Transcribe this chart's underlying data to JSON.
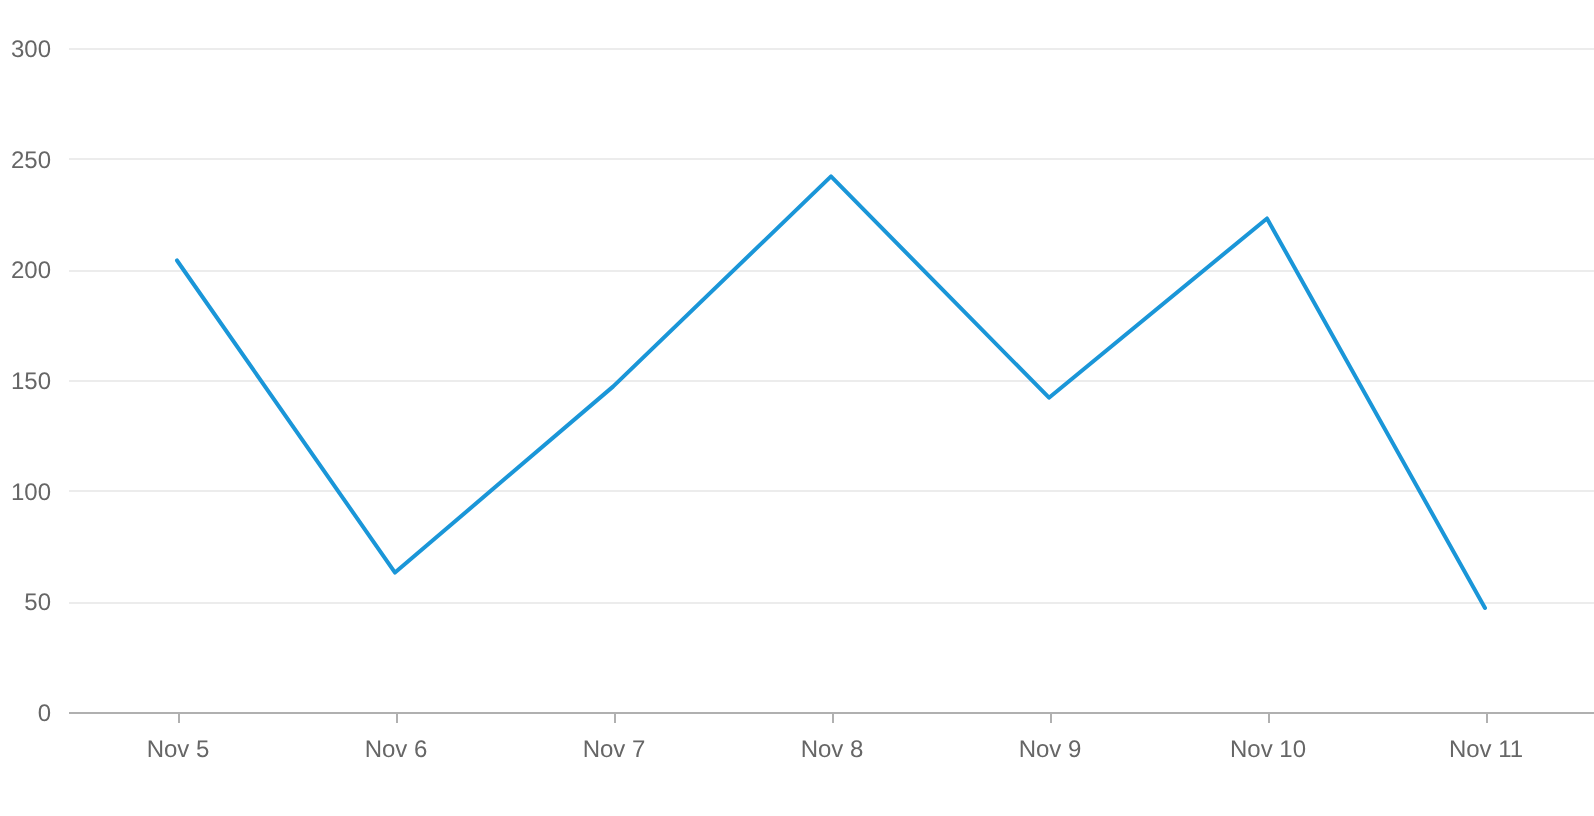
{
  "chart_data": {
    "type": "line",
    "categories": [
      "Nov 5",
      "Nov 6",
      "Nov 7",
      "Nov 8",
      "Nov 9",
      "Nov 10",
      "Nov 11"
    ],
    "series": [
      {
        "color": "#1a96d8",
        "values": [
          204,
          63,
          147,
          242,
          142,
          223,
          47
        ]
      }
    ],
    "ylim": [
      0,
      300
    ],
    "yticks": [
      0,
      50,
      100,
      150,
      200,
      250,
      300
    ],
    "grid": "y"
  }
}
